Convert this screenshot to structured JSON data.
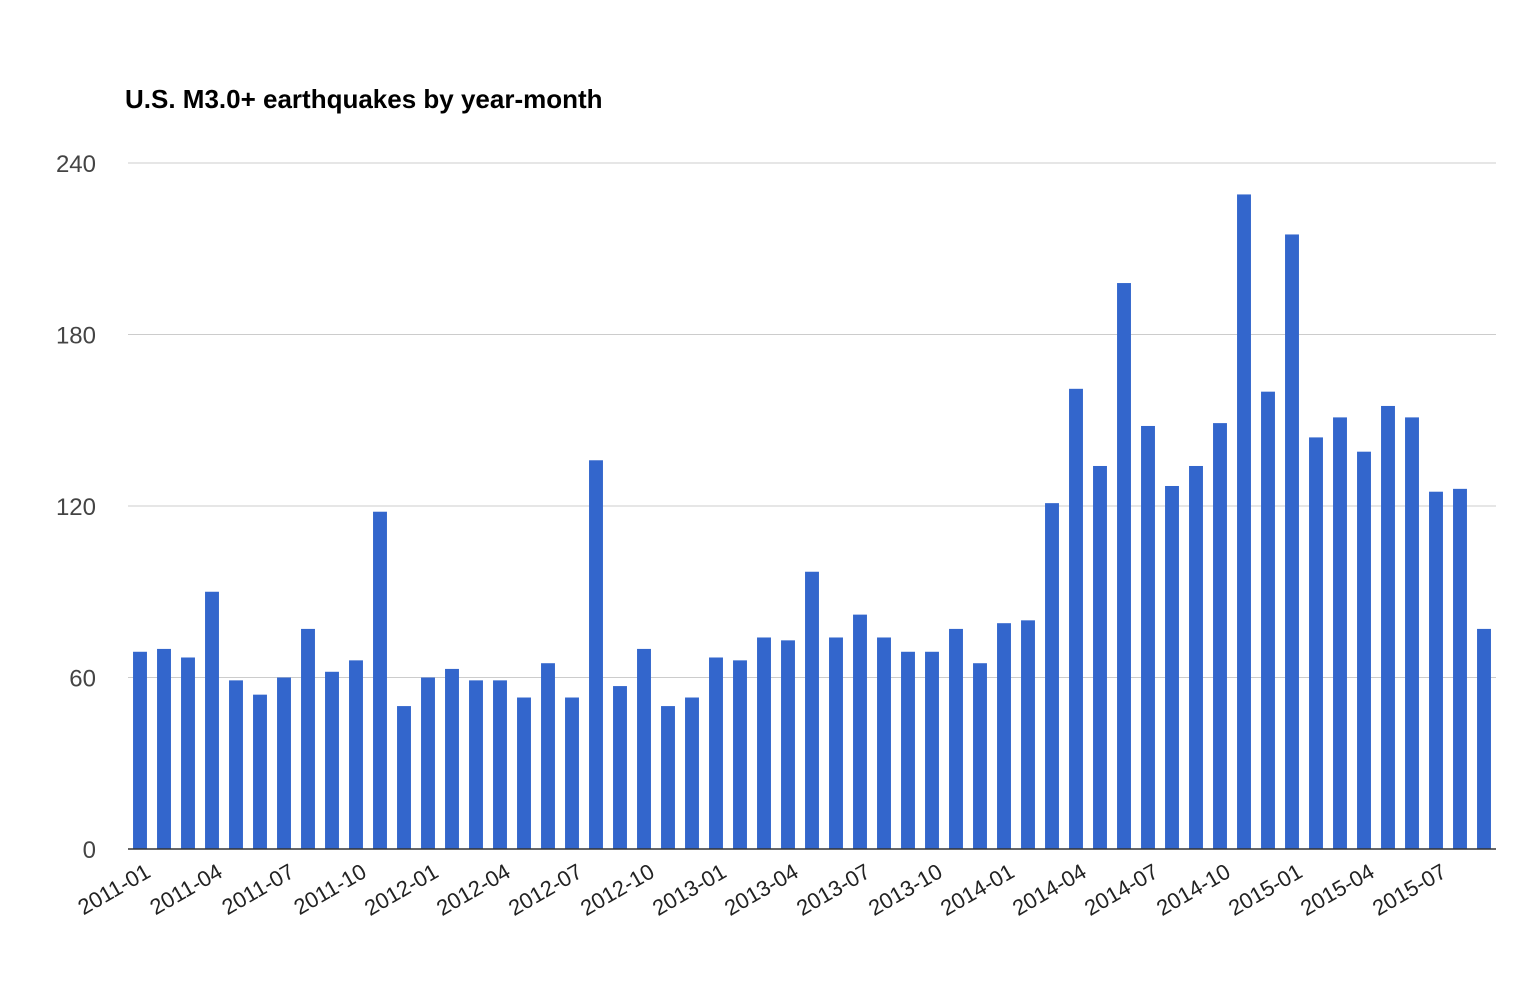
{
  "chart_data": {
    "type": "bar",
    "title": "U.S. M3.0+ earthquakes by year-month",
    "xlabel": "",
    "ylabel": "",
    "ylim": [
      0,
      240
    ],
    "yticks": [
      "0",
      "60",
      "120",
      "180",
      "240"
    ],
    "grid": true,
    "legend": "none",
    "bar_color": "#3366cc",
    "categories": [
      "2011-01",
      "2011-02",
      "2011-03",
      "2011-04",
      "2011-05",
      "2011-06",
      "2011-07",
      "2011-08",
      "2011-09",
      "2011-10",
      "2011-11",
      "2011-12",
      "2012-01",
      "2012-02",
      "2012-03",
      "2012-04",
      "2012-05",
      "2012-06",
      "2012-07",
      "2012-08",
      "2012-09",
      "2012-10",
      "2012-11",
      "2012-12",
      "2013-01",
      "2013-02",
      "2013-03",
      "2013-04",
      "2013-05",
      "2013-06",
      "2013-07",
      "2013-08",
      "2013-09",
      "2013-10",
      "2013-11",
      "2013-12",
      "2014-01",
      "2014-02",
      "2014-03",
      "2014-04",
      "2014-05",
      "2014-06",
      "2014-07",
      "2014-08",
      "2014-09",
      "2014-10",
      "2014-11",
      "2014-12",
      "2015-01",
      "2015-02",
      "2015-03",
      "2015-04",
      "2015-05",
      "2015-06",
      "2015-07",
      "2015-08",
      "2015-09"
    ],
    "x_tick_labels": [
      "2011-01",
      "2011-04",
      "2011-07",
      "2011-10",
      "2012-01",
      "2012-04",
      "2012-07",
      "2012-10",
      "2013-01",
      "2013-04",
      "2013-07",
      "2013-10",
      "2014-01",
      "2014-04",
      "2014-07",
      "2014-10",
      "2015-01",
      "2015-04",
      "2015-07"
    ],
    "values": [
      69,
      70,
      67,
      90,
      59,
      54,
      60,
      77,
      62,
      66,
      118,
      50,
      60,
      63,
      59,
      59,
      53,
      65,
      53,
      136,
      57,
      70,
      50,
      53,
      67,
      66,
      74,
      73,
      97,
      74,
      82,
      74,
      69,
      69,
      77,
      65,
      79,
      80,
      121,
      161,
      134,
      198,
      148,
      127,
      134,
      149,
      229,
      160,
      215,
      144,
      151,
      139,
      155,
      151,
      125,
      126,
      77
    ]
  }
}
